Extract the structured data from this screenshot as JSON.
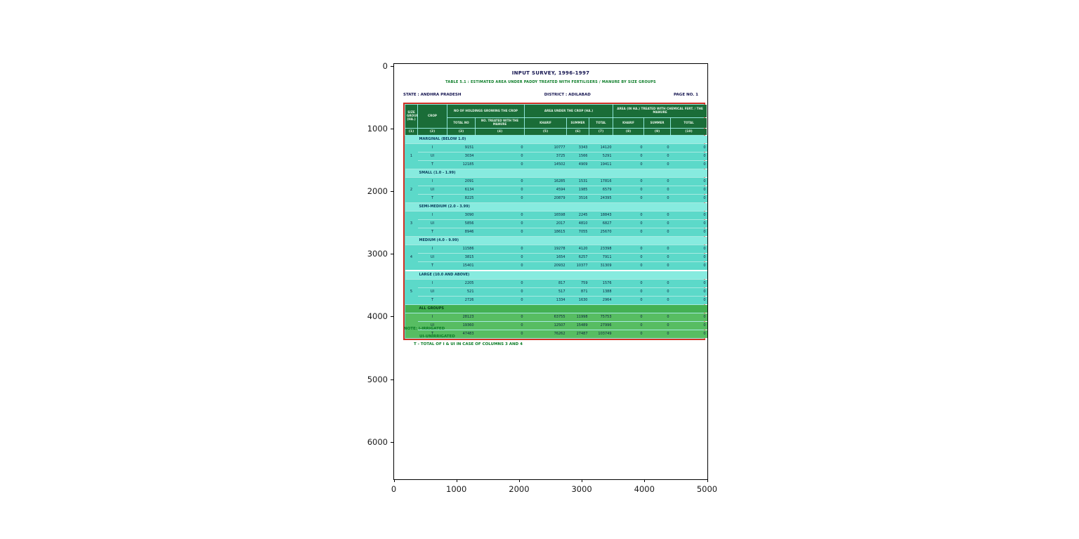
{
  "figure": {
    "x_ticks": [
      "0",
      "1000",
      "2000",
      "3000",
      "4000",
      "5000"
    ],
    "y_ticks": [
      "0",
      "1000",
      "2000",
      "3000",
      "4000",
      "5000",
      "6000"
    ]
  },
  "colors": {
    "header_green": "#1a6d38",
    "body_teal": "#5cd9c9",
    "group_teal": "#87ebdf",
    "all_groups_green": "#57bd62",
    "table_border_red": "#d03025",
    "note_green": "#0a7c26",
    "title_navy": "#13134f"
  },
  "document": {
    "title": "INPUT SURVEY, 1996-1997",
    "subtitle": "TABLE 5.1 : ESTIMATED AREA UNDER PADDY TREATED WITH FERTILISERS / MANURE BY SIZE GROUPS",
    "state_label": "STATE : ANDHRA PRADESH",
    "district_label": "DISTRICT : ADILABAD",
    "page_label": "PAGE NO. 1",
    "notes": [
      "NOTE: I-IRRIGATED",
      "UI-UNIRRIGATED",
      "T - TOTAL OF I & UI IN CASE OF COLUMNS 3 AND 4"
    ],
    "table": {
      "header": {
        "size_group": "SIZE GROUP (HA.)",
        "crop": "CROP",
        "holdings_group": "NO OF HOLDINGS GROWING THE CROP",
        "holdings_sub": [
          "TOTAL NO",
          "NO. TREATED WITH THE MANURE"
        ],
        "area_group": "AREA UNDER THE CROP (HA.)",
        "area_sub": [
          "KHARIF",
          "SUMMER",
          "TOTAL"
        ],
        "treated_group": "AREA (IN HA.) TREATED WITH CHEMICAL FERT. / THE MANURE",
        "treated_sub": [
          "KHARIF",
          "SUMMER",
          "TOTAL"
        ],
        "col_numbers": [
          "(1)",
          "(2)",
          "(3)",
          "(4)",
          "(5)",
          "(6)",
          "(7)",
          "(8)",
          "(9)",
          "(10)"
        ]
      },
      "groups": [
        {
          "sl": "1",
          "label": "MARGINAL (BELOW 1.0)",
          "green": false,
          "gap_above": false,
          "rows": [
            {
              "crop": "I",
              "values": [
                "9151",
                "0",
                "10777",
                "3343",
                "14120",
                "0",
                "0",
                "0"
              ]
            },
            {
              "crop": "UI",
              "values": [
                "3034",
                "0",
                "3725",
                "1566",
                "5291",
                "0",
                "0",
                "0"
              ]
            },
            {
              "crop": "T",
              "values": [
                "12185",
                "0",
                "14502",
                "4909",
                "19411",
                "0",
                "0",
                "0"
              ]
            }
          ]
        },
        {
          "sl": "2",
          "label": "SMALL (1.0 - 1.99)",
          "green": false,
          "gap_above": false,
          "rows": [
            {
              "crop": "I",
              "values": [
                "2091",
                "0",
                "16285",
                "1531",
                "17816",
                "0",
                "0",
                "0"
              ]
            },
            {
              "crop": "UI",
              "values": [
                "6134",
                "0",
                "4594",
                "1985",
                "6579",
                "0",
                "0",
                "0"
              ]
            },
            {
              "crop": "T",
              "values": [
                "8225",
                "0",
                "20879",
                "3516",
                "24395",
                "0",
                "0",
                "0"
              ]
            }
          ]
        },
        {
          "sl": "3",
          "label": "SEMI-MEDIUM (2.0 - 3.99)",
          "green": false,
          "gap_above": false,
          "rows": [
            {
              "crop": "I",
              "values": [
                "3090",
                "0",
                "16598",
                "2245",
                "18843",
                "0",
                "0",
                "0"
              ]
            },
            {
              "crop": "UI",
              "values": [
                "5856",
                "0",
                "2017",
                "4810",
                "6827",
                "0",
                "0",
                "0"
              ]
            },
            {
              "crop": "T",
              "values": [
                "8946",
                "0",
                "18615",
                "7055",
                "25670",
                "0",
                "0",
                "0"
              ]
            }
          ]
        },
        {
          "sl": "4",
          "label": "MEDIUM (4.0 - 9.99)",
          "green": false,
          "gap_above": false,
          "rows": [
            {
              "crop": "I",
              "values": [
                "11586",
                "0",
                "19278",
                "4120",
                "23398",
                "0",
                "0",
                "0"
              ]
            },
            {
              "crop": "UI",
              "values": [
                "3815",
                "0",
                "1654",
                "6257",
                "7911",
                "0",
                "0",
                "0"
              ]
            },
            {
              "crop": "T",
              "values": [
                "15401",
                "0",
                "20932",
                "10377",
                "31309",
                "0",
                "0",
                "0"
              ]
            }
          ]
        },
        {
          "sl": "5",
          "label": "LARGE (10.0 AND ABOVE)",
          "green": false,
          "gap_above": true,
          "rows": [
            {
              "crop": "I",
              "values": [
                "2205",
                "0",
                "817",
                "759",
                "1576",
                "0",
                "0",
                "0"
              ]
            },
            {
              "crop": "UI",
              "values": [
                "521",
                "0",
                "517",
                "871",
                "1388",
                "0",
                "0",
                "0"
              ]
            },
            {
              "crop": "T",
              "values": [
                "2726",
                "0",
                "1334",
                "1630",
                "2964",
                "0",
                "0",
                "0"
              ]
            }
          ]
        },
        {
          "sl": "",
          "label": "ALL GROUPS",
          "green": true,
          "gap_above": false,
          "rows": [
            {
              "crop": "I",
              "values": [
                "28123",
                "0",
                "63755",
                "11998",
                "75753",
                "0",
                "0",
                "0"
              ]
            },
            {
              "crop": "UI",
              "values": [
                "19360",
                "0",
                "12507",
                "15489",
                "27996",
                "0",
                "0",
                "0"
              ]
            },
            {
              "crop": "T",
              "values": [
                "47483",
                "0",
                "76262",
                "27487",
                "103749",
                "0",
                "0",
                "0"
              ]
            }
          ]
        }
      ]
    }
  },
  "chart_data": {
    "type": "table",
    "title": "INPUT SURVEY, 1996-1997",
    "note": "Scanned survey table displayed inside plot axes; x range 0-5000, y range 0-6000 (pixel coordinates of the scanned page)."
  }
}
